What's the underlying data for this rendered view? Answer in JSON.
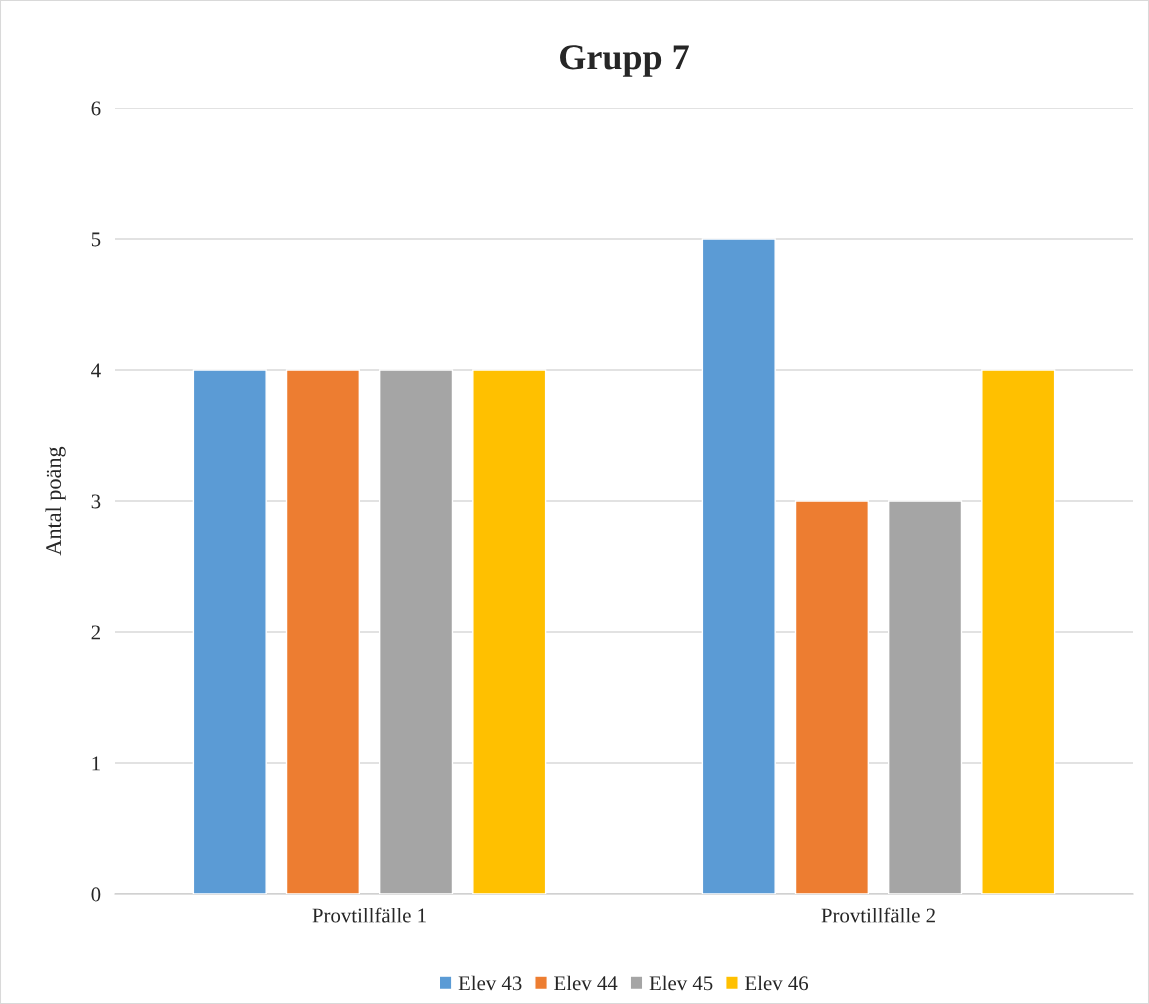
{
  "chart_data": {
    "type": "bar",
    "title": "Grupp 7",
    "ylabel": "Antal poäng",
    "categories": [
      "Provtillfälle 1",
      "Provtillfälle 2"
    ],
    "series": [
      {
        "name": "Elev 43",
        "color": "#5b9bd5",
        "values": [
          4,
          5
        ]
      },
      {
        "name": "Elev 44",
        "color": "#ed7d31",
        "values": [
          4,
          3
        ]
      },
      {
        "name": "Elev 45",
        "color": "#a5a5a5",
        "values": [
          4,
          3
        ]
      },
      {
        "name": "Elev 46",
        "color": "#ffc000",
        "values": [
          4,
          4
        ]
      }
    ],
    "ylim": [
      0,
      6
    ],
    "yticks": [
      0,
      1,
      2,
      3,
      4,
      5,
      6
    ],
    "grid": "y",
    "legend": "bottom"
  }
}
